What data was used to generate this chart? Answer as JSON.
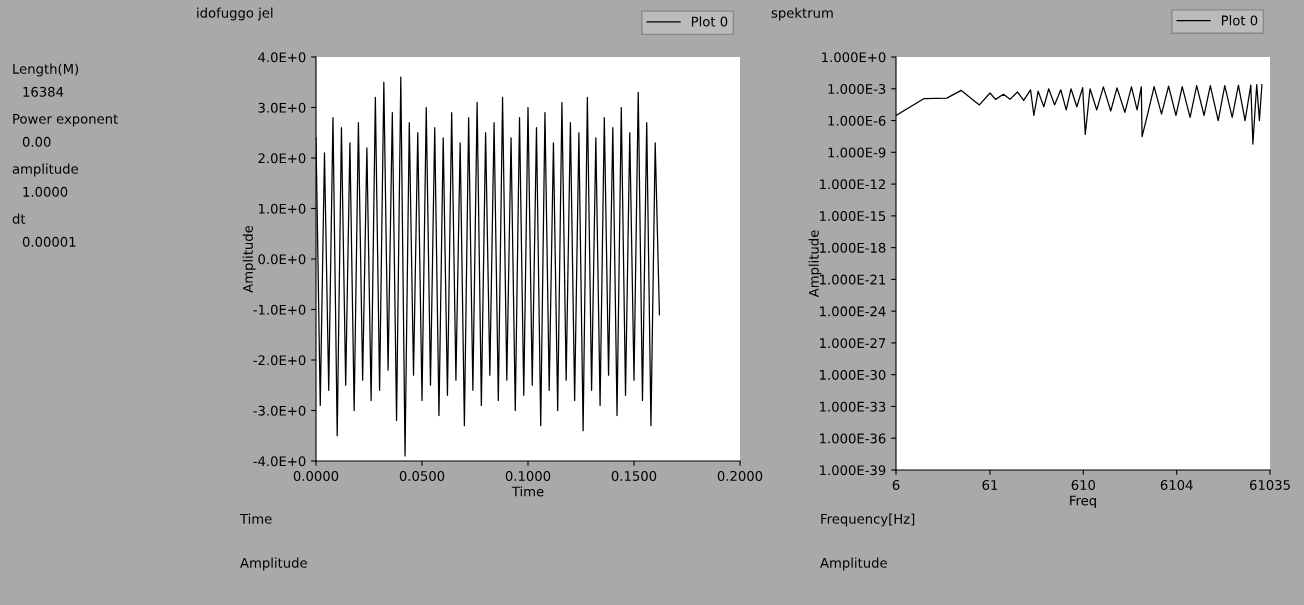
{
  "chart_data": [
    {
      "type": "other",
      "annotations": [
        "Length(M)",
        "16384",
        "Power exponent",
        "0.00",
        "amplitude",
        "1.0000",
        "dt",
        "0.00001"
      ]
    },
    {
      "type": "line",
      "title": "idofuggo jel",
      "xlabel": "Time",
      "ylabel": "Amplitude",
      "legend": "top right",
      "grid": false,
      "xlim": [
        0,
        0.2
      ],
      "xticks": [
        {
          "value": 0,
          "label": "0.0000"
        },
        {
          "value": 0.05,
          "label": "0.0500"
        },
        {
          "value": 0.1,
          "label": "0.1000"
        },
        {
          "value": 0.15,
          "label": "0.1500"
        },
        {
          "value": 0.2,
          "label": "0.2000"
        }
      ],
      "ylim": [
        -4,
        4
      ],
      "yticks": [
        {
          "value": -4,
          "label": "-4.0E+0"
        },
        {
          "value": -3,
          "label": "-3.0E+0"
        },
        {
          "value": -2,
          "label": "-2.0E+0"
        },
        {
          "value": -1,
          "label": "-1.0E+0"
        },
        {
          "value": 0,
          "label": "0.0E+0"
        },
        {
          "value": 1,
          "label": "1.0E+0"
        },
        {
          "value": 2,
          "label": "2.0E+0"
        },
        {
          "value": 3,
          "label": "3.0E+0"
        },
        {
          "value": 4,
          "label": "4.0E+0"
        }
      ],
      "annotations": [
        "Time",
        "Amplitude"
      ],
      "series": [
        {
          "name": "Plot 0",
          "color": "#000000",
          "x": [
            0,
            0.002,
            0.004,
            0.006,
            0.008,
            0.01,
            0.012,
            0.014,
            0.016,
            0.018,
            0.02,
            0.022,
            0.024,
            0.026,
            0.028,
            0.03,
            0.032,
            0.034,
            0.036,
            0.038,
            0.04,
            0.042,
            0.044,
            0.046,
            0.048,
            0.05,
            0.052,
            0.054,
            0.056,
            0.058,
            0.06,
            0.062,
            0.064,
            0.066,
            0.068,
            0.07,
            0.072,
            0.074,
            0.076,
            0.078,
            0.08,
            0.082,
            0.084,
            0.086,
            0.088,
            0.09,
            0.092,
            0.094,
            0.096,
            0.098,
            0.1,
            0.102,
            0.104,
            0.106,
            0.108,
            0.11,
            0.112,
            0.114,
            0.116,
            0.118,
            0.12,
            0.122,
            0.124,
            0.126,
            0.128,
            0.13,
            0.132,
            0.134,
            0.136,
            0.138,
            0.14,
            0.142,
            0.144,
            0.146,
            0.148,
            0.15,
            0.152,
            0.154,
            0.156,
            0.158,
            0.16,
            0.162
          ],
          "values": [
            2.4,
            -2.9,
            2.1,
            -2.6,
            2.8,
            -3.5,
            2.6,
            -2.5,
            2.3,
            -3.0,
            2.7,
            -2.4,
            2.2,
            -2.8,
            3.2,
            -2.6,
            3.5,
            -2.2,
            2.9,
            -3.2,
            3.6,
            -3.9,
            2.7,
            -2.3,
            2.5,
            -2.8,
            3.0,
            -2.5,
            2.6,
            -3.1,
            2.4,
            -2.7,
            2.9,
            -2.4,
            2.3,
            -3.3,
            2.8,
            -2.6,
            3.1,
            -2.9,
            2.5,
            -2.3,
            2.7,
            -2.8,
            3.2,
            -2.4,
            2.4,
            -3.0,
            2.8,
            -2.7,
            3.0,
            -2.5,
            2.6,
            -3.3,
            2.9,
            -2.6,
            2.3,
            -3.0,
            3.1,
            -2.4,
            2.7,
            -2.8,
            2.5,
            -3.4,
            3.2,
            -2.6,
            2.4,
            -2.9,
            2.8,
            -2.3,
            2.6,
            -3.1,
            3.0,
            -2.7,
            2.5,
            -2.4,
            3.3,
            -2.8,
            2.7,
            -3.3,
            2.3,
            -1.1
          ]
        }
      ]
    },
    {
      "type": "line",
      "title": "spektrum",
      "xlabel": "Freq",
      "ylabel": "Amplitude",
      "legend": "top right",
      "grid": false,
      "log": "xy",
      "xlim": [
        6,
        61035
      ],
      "xticks": [
        6,
        61,
        610,
        6104,
        61035
      ],
      "ylim": [
        1e-39,
        1
      ],
      "yticks": [
        {
          "value": 1e-39,
          "label": "1.000E-39"
        },
        {
          "value": 1e-36,
          "label": "1.000E-36"
        },
        {
          "value": 1e-33,
          "label": "1.000E-33"
        },
        {
          "value": 1e-30,
          "label": "1.000E-30"
        },
        {
          "value": 1e-27,
          "label": "1.000E-27"
        },
        {
          "value": 1e-24,
          "label": "1.000E-24"
        },
        {
          "value": 1e-21,
          "label": "1.000E-21"
        },
        {
          "value": 1e-18,
          "label": "1.000E-18"
        },
        {
          "value": 1e-15,
          "label": "1.000E-15"
        },
        {
          "value": 1e-12,
          "label": "1.000E-12"
        },
        {
          "value": 1e-09,
          "label": "1.000E-9"
        },
        {
          "value": 1e-06,
          "label": "1.000E-6"
        },
        {
          "value": 0.001,
          "label": "1.000E-3"
        },
        {
          "value": 1,
          "label": "1.000E+0"
        }
      ],
      "annotations": [
        "Frequency[Hz]",
        "Amplitude"
      ],
      "series": [
        {
          "name": "Plot 0",
          "color": "#000000",
          "x": [
            6,
            12,
            21,
            30,
            47,
            61,
            70,
            85,
            100,
            120,
            140,
            166,
            180,
            200,
            230,
            260,
            300,
            350,
            400,
            450,
            520,
            600,
            640,
            720,
            850,
            1000,
            1200,
            1400,
            1700,
            2000,
            2300,
            2550,
            2600,
            3000,
            3500,
            4200,
            5000,
            6000,
            7000,
            8500,
            10000,
            12000,
            14000,
            17000,
            20000,
            24000,
            28000,
            33000,
            38000,
            40000,
            44000,
            47000,
            50000
          ],
          "values": [
            3e-06,
            0.00012,
            0.00013,
            0.0007,
            3e-05,
            0.0004,
            0.0001,
            0.0003,
            0.0001,
            0.0005,
            8e-05,
            0.0008,
            3e-06,
            0.0006,
            2e-05,
            0.001,
            3e-05,
            0.0008,
            1e-05,
            0.001,
            2e-05,
            0.0013,
            5e-08,
            0.001,
            1e-05,
            0.0015,
            8e-06,
            0.0012,
            6e-06,
            0.0015,
            1e-05,
            0.0015,
            3e-08,
            5e-06,
            0.0016,
            4e-06,
            0.0018,
            3e-06,
            0.0016,
            2e-06,
            0.002,
            3e-06,
            0.002,
            1e-06,
            0.002,
            2e-06,
            0.0022,
            1e-06,
            0.0022,
            6e-09,
            0.0025,
            1e-06,
            0.0025
          ]
        }
      ]
    }
  ]
}
